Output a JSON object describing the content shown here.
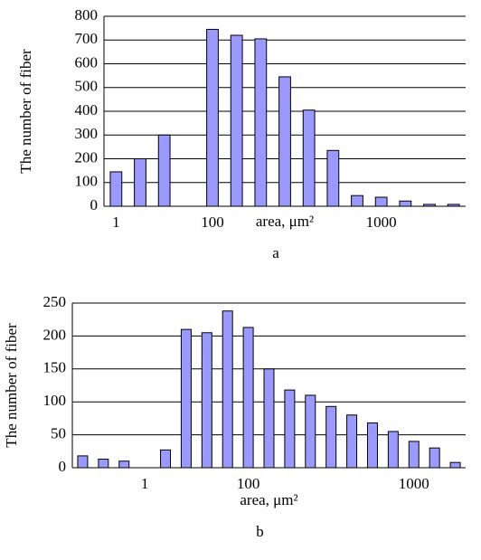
{
  "chart_data": [
    {
      "type": "bar",
      "y_label": "The number of fiber",
      "x_label": "area, μm²",
      "caption": "a",
      "categories": [
        "1",
        null,
        null,
        null,
        "100",
        null,
        null,
        null,
        null,
        null,
        null,
        "1000",
        null,
        null,
        null
      ],
      "values": [
        145,
        200,
        300,
        null,
        745,
        720,
        705,
        545,
        405,
        235,
        45,
        38,
        22,
        8,
        8
      ],
      "color": "#9999ff",
      "ylim": [
        0,
        800
      ],
      "yticks": [
        0,
        100,
        200,
        300,
        400,
        500,
        600,
        700,
        800
      ],
      "grid": true
    },
    {
      "type": "bar",
      "y_label": "The number of fiber",
      "x_label": "area, μm²",
      "caption": "b",
      "categories": [
        null,
        null,
        null,
        "1",
        null,
        null,
        null,
        null,
        "100",
        null,
        null,
        null,
        null,
        null,
        null,
        null,
        "1000",
        null,
        null
      ],
      "values": [
        18,
        13,
        10,
        null,
        27,
        210,
        205,
        238,
        213,
        150,
        118,
        110,
        93,
        80,
        68,
        55,
        40,
        30,
        8
      ],
      "color": "#9999ff",
      "ylim": [
        0,
        250
      ],
      "yticks": [
        0,
        50,
        100,
        150,
        200,
        250
      ],
      "grid": true
    }
  ]
}
